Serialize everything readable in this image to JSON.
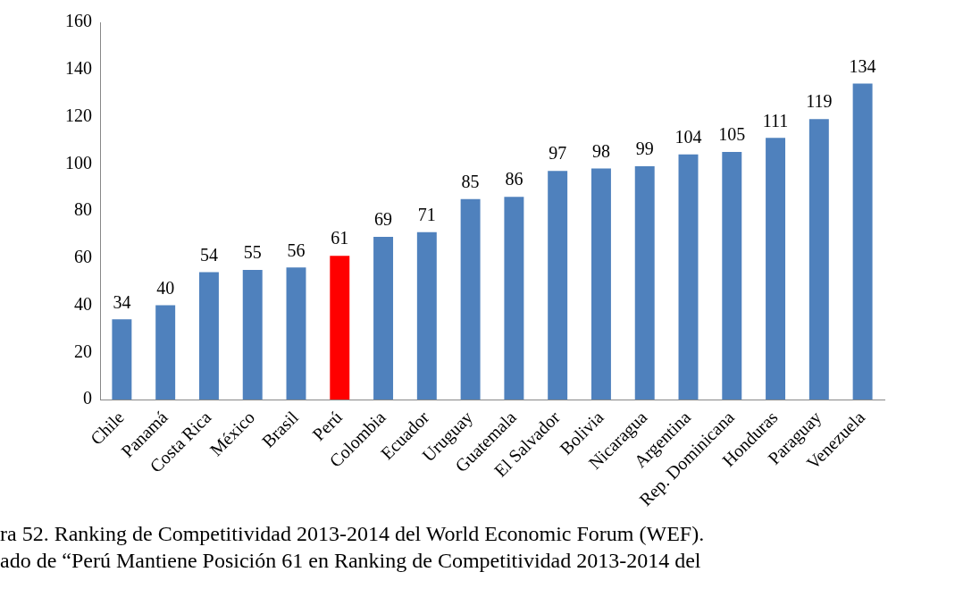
{
  "chart_data": {
    "type": "bar",
    "categories": [
      "Chile",
      "Panamá",
      "Costa Rica",
      "México",
      "Brasil",
      "Perú",
      "Colombia",
      "Ecuador",
      "Uruguay",
      "Guatemala",
      "El Salvador",
      "Bolivia",
      "Nicaragua",
      "Argentina",
      "Rep. Dominicana",
      "Honduras",
      "Paraguay",
      "Venezuela"
    ],
    "values": [
      34,
      40,
      54,
      55,
      56,
      61,
      69,
      71,
      85,
      86,
      97,
      98,
      99,
      104,
      105,
      111,
      119,
      134
    ],
    "colors": [
      "#4f81bd",
      "#4f81bd",
      "#4f81bd",
      "#4f81bd",
      "#4f81bd",
      "#ff0000",
      "#4f81bd",
      "#4f81bd",
      "#4f81bd",
      "#4f81bd",
      "#4f81bd",
      "#4f81bd",
      "#4f81bd",
      "#4f81bd",
      "#4f81bd",
      "#4f81bd",
      "#4f81bd",
      "#4f81bd"
    ],
    "ylim": [
      0,
      160
    ],
    "yticks": [
      0,
      20,
      40,
      60,
      80,
      100,
      120,
      140,
      160
    ],
    "grid": false,
    "legend": false,
    "data_labels": true,
    "annotations": [
      "ra 52.  Ranking de Competitividad 2013-2014 del World Economic Forum (WEF).",
      "ado de “Perú Mantiene Posición 61 en Ranking de Competitividad 2013-2014 del"
    ]
  }
}
